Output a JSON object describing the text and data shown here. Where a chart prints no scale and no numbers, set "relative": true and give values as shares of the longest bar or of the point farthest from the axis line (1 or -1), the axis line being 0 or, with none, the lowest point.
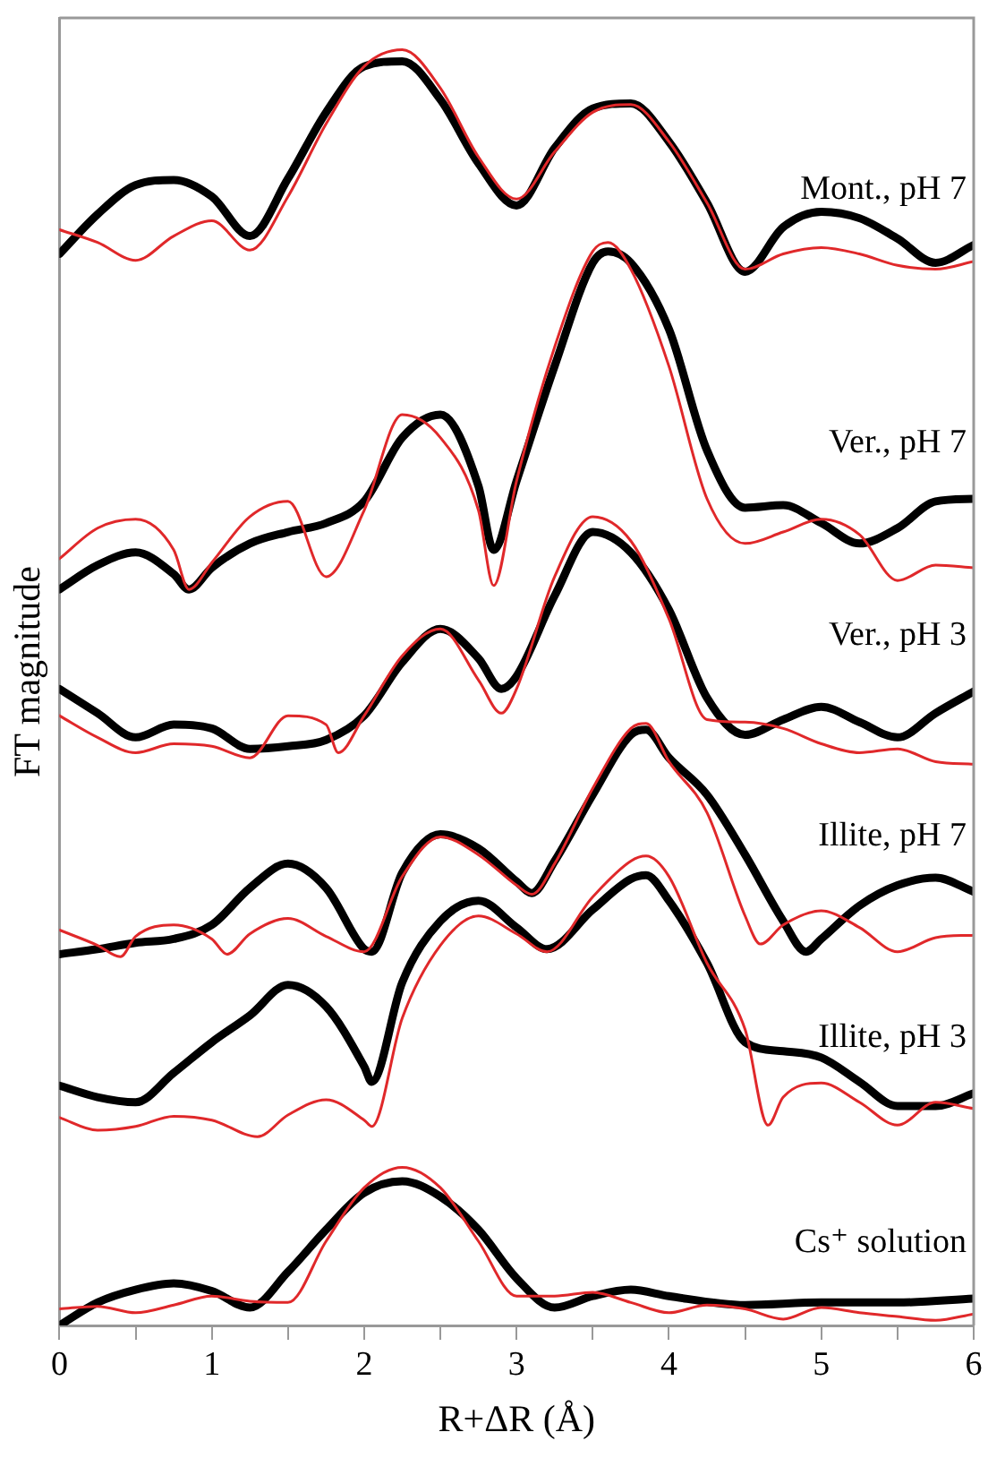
{
  "chart_data": {
    "type": "line",
    "relative": true,
    "xlabel": "R+ΔR (Å)",
    "ylabel": "FT magnitude",
    "xlim": [
      0,
      6
    ],
    "xticks": [
      0,
      {
        "value": 0.5,
        "label": null
      },
      1,
      {
        "value": 1.5,
        "label": null
      },
      2,
      {
        "value": 2.5,
        "label": null
      },
      3,
      {
        "value": 3.5,
        "label": null
      },
      4,
      {
        "value": 4.5,
        "label": null
      },
      5,
      {
        "value": 5.5,
        "label": null
      },
      6
    ],
    "legend": false,
    "grid": false,
    "marker": "none",
    "line_style": "solid",
    "series": [
      {
        "name": "Mont., pH 7",
        "color": "#000000",
        "x": [
          0,
          0.25,
          0.5,
          0.75,
          1,
          1.25,
          1.5,
          1.75,
          2,
          2.25,
          2.5,
          2.75,
          3,
          3.25,
          3.5,
          3.75,
          4,
          4.25,
          4.5,
          4.75,
          5,
          5.25,
          5.5,
          5.75,
          6
        ],
        "values": [
          0.84,
          0.871,
          0.894,
          0.898,
          0.885,
          0.854,
          0.899,
          0.951,
          0.987,
          0.991,
          0.961,
          0.911,
          0.878,
          0.923,
          0.954,
          0.958,
          0.928,
          0.88,
          0.826,
          0.861,
          0.873,
          0.868,
          0.852,
          0.833,
          0.847
        ]
      },
      {
        "color": "#e0282a",
        "x": [
          0,
          0.25,
          0.5,
          0.75,
          1,
          1.25,
          1.5,
          1.75,
          2,
          2.25,
          2.5,
          2.75,
          3,
          3.25,
          3.5,
          3.75,
          4,
          4.25,
          4.5,
          4.75,
          5,
          5.25,
          5.5,
          5.75,
          6
        ],
        "values": [
          0.859,
          0.849,
          0.835,
          0.854,
          0.866,
          0.843,
          0.885,
          0.942,
          0.987,
          1,
          0.97,
          0.916,
          0.883,
          0.92,
          0.951,
          0.957,
          0.928,
          0.88,
          0.828,
          0.84,
          0.845,
          0.84,
          0.831,
          0.828,
          0.834
        ]
      },
      {
        "name": "Ver., pH 7",
        "color": "#000000",
        "x": [
          0,
          0.25,
          0.5,
          0.75,
          0.85,
          1,
          1.25,
          1.5,
          1.75,
          2,
          2.25,
          2.5,
          2.75,
          2.85,
          3,
          3.25,
          3.5,
          3.6,
          3.75,
          4,
          4.25,
          4.5,
          4.75,
          5,
          5.25,
          5.5,
          5.75,
          6
        ],
        "values": [
          0.577,
          0.596,
          0.606,
          0.589,
          0.577,
          0.594,
          0.613,
          0.622,
          0.629,
          0.646,
          0.696,
          0.714,
          0.658,
          0.608,
          0.662,
          0.752,
          0.833,
          0.842,
          0.833,
          0.781,
          0.686,
          0.641,
          0.643,
          0.629,
          0.613,
          0.625,
          0.646,
          0.648
        ]
      },
      {
        "color": "#e0282a",
        "x": [
          0,
          0.25,
          0.5,
          0.75,
          0.85,
          1,
          1.25,
          1.5,
          1.75,
          2,
          2.25,
          2.5,
          2.75,
          2.85,
          3,
          3.25,
          3.5,
          3.6,
          3.75,
          4,
          4.25,
          4.5,
          4.75,
          5,
          5.25,
          5.5,
          5.75,
          6
        ],
        "values": [
          0.601,
          0.625,
          0.632,
          0.608,
          0.577,
          0.598,
          0.634,
          0.646,
          0.587,
          0.639,
          0.714,
          0.696,
          0.639,
          0.58,
          0.662,
          0.767,
          0.842,
          0.849,
          0.828,
          0.752,
          0.648,
          0.613,
          0.622,
          0.632,
          0.62,
          0.584,
          0.596,
          0.594
        ]
      },
      {
        "name": "Ver., pH 3",
        "color": "#000000",
        "x": [
          0,
          0.25,
          0.5,
          0.75,
          1,
          1.25,
          1.5,
          1.75,
          2,
          2.25,
          2.5,
          2.75,
          2.9,
          3,
          3.25,
          3.5,
          3.75,
          4,
          4.25,
          4.5,
          4.75,
          5,
          5.25,
          5.5,
          5.75,
          6
        ],
        "values": [
          0.499,
          0.48,
          0.461,
          0.471,
          0.468,
          0.452,
          0.454,
          0.459,
          0.478,
          0.52,
          0.546,
          0.523,
          0.499,
          0.509,
          0.572,
          0.622,
          0.606,
          0.561,
          0.492,
          0.463,
          0.475,
          0.485,
          0.473,
          0.461,
          0.48,
          0.497
        ]
      },
      {
        "color": "#e0282a",
        "x": [
          0,
          0.25,
          0.5,
          0.75,
          1,
          1.25,
          1.5,
          1.75,
          1.83,
          2,
          2.25,
          2.5,
          2.75,
          2.9,
          3,
          3.25,
          3.5,
          3.75,
          4,
          4.25,
          4.5,
          4.75,
          5,
          5.25,
          5.5,
          5.75,
          6
        ],
        "values": [
          0.478,
          0.461,
          0.449,
          0.456,
          0.454,
          0.445,
          0.478,
          0.471,
          0.449,
          0.478,
          0.525,
          0.546,
          0.506,
          0.48,
          0.499,
          0.587,
          0.634,
          0.615,
          0.554,
          0.475,
          0.473,
          0.468,
          0.456,
          0.449,
          0.452,
          0.442,
          0.44
        ]
      },
      {
        "name": "Illite, pH 7",
        "color": "#000000",
        "x": [
          0,
          0.25,
          0.5,
          0.75,
          1,
          1.25,
          1.5,
          1.75,
          2,
          2.05,
          2.25,
          2.5,
          2.75,
          3,
          3.1,
          3.25,
          3.5,
          3.75,
          3.85,
          4,
          4.25,
          4.5,
          4.75,
          4.9,
          5,
          5.25,
          5.5,
          5.75,
          6
        ],
        "values": [
          0.291,
          0.295,
          0.3,
          0.303,
          0.314,
          0.343,
          0.362,
          0.343,
          0.295,
          0.293,
          0.355,
          0.385,
          0.374,
          0.348,
          0.339,
          0.364,
          0.416,
          0.463,
          0.467,
          0.445,
          0.416,
          0.369,
          0.317,
          0.293,
          0.303,
          0.329,
          0.345,
          0.351,
          0.34
        ]
      },
      {
        "color": "#e0282a",
        "x": [
          0,
          0.25,
          0.4,
          0.5,
          0.75,
          1,
          1.1,
          1.25,
          1.5,
          1.75,
          2,
          2.25,
          2.5,
          2.75,
          3,
          3.1,
          3.25,
          3.5,
          3.75,
          3.85,
          4,
          4.25,
          4.5,
          4.6,
          4.75,
          5,
          5.25,
          5.5,
          5.75,
          6
        ],
        "values": [
          0.31,
          0.298,
          0.289,
          0.305,
          0.314,
          0.303,
          0.291,
          0.307,
          0.319,
          0.305,
          0.293,
          0.352,
          0.383,
          0.369,
          0.345,
          0.338,
          0.362,
          0.421,
          0.468,
          0.472,
          0.442,
          0.402,
          0.321,
          0.299,
          0.314,
          0.325,
          0.312,
          0.293,
          0.304,
          0.306
        ]
      },
      {
        "name": "Illite, pH 3",
        "color": "#000000",
        "x": [
          0,
          0.25,
          0.5,
          0.75,
          1,
          1.25,
          1.5,
          1.75,
          2,
          2.05,
          2.25,
          2.5,
          2.75,
          3,
          3.2,
          3.5,
          3.75,
          3.85,
          4,
          4.25,
          4.5,
          4.75,
          5,
          5.25,
          5.5,
          5.75,
          6
        ],
        "values": [
          0.188,
          0.179,
          0.175,
          0.198,
          0.222,
          0.243,
          0.267,
          0.25,
          0.203,
          0.191,
          0.269,
          0.317,
          0.333,
          0.312,
          0.295,
          0.326,
          0.35,
          0.353,
          0.333,
          0.284,
          0.222,
          0.215,
          0.21,
          0.191,
          0.172,
          0.172,
          0.182
        ]
      },
      {
        "color": "#e0282a",
        "x": [
          0,
          0.25,
          0.5,
          0.75,
          1,
          1.3,
          1.5,
          1.75,
          2,
          2.05,
          2.25,
          2.5,
          2.75,
          3,
          3.2,
          3.5,
          3.75,
          3.85,
          4,
          4.25,
          4.5,
          4.65,
          4.75,
          5,
          5.25,
          5.5,
          5.75,
          6
        ],
        "values": [
          0.163,
          0.153,
          0.156,
          0.164,
          0.161,
          0.148,
          0.165,
          0.177,
          0.161,
          0.156,
          0.241,
          0.298,
          0.321,
          0.307,
          0.293,
          0.336,
          0.364,
          0.368,
          0.352,
          0.284,
          0.232,
          0.157,
          0.179,
          0.19,
          0.175,
          0.157,
          0.175,
          0.17
        ]
      },
      {
        "name": "Cs⁺ solution",
        "color": "#000000",
        "x": [
          0,
          0.25,
          0.5,
          0.75,
          1,
          1.25,
          1.5,
          1.75,
          2,
          2.25,
          2.5,
          2.75,
          3,
          3.25,
          3.5,
          3.75,
          4,
          4.5,
          5,
          5.5,
          6
        ],
        "values": [
          0,
          0.018,
          0.028,
          0.033,
          0.027,
          0.014,
          0.042,
          0.075,
          0.104,
          0.113,
          0.101,
          0.075,
          0.037,
          0.014,
          0.023,
          0.028,
          0.023,
          0.016,
          0.018,
          0.018,
          0.021
        ]
      },
      {
        "color": "#e0282a",
        "x": [
          0,
          0.25,
          0.5,
          0.75,
          1,
          1.25,
          1.5,
          1.75,
          2,
          2.25,
          2.5,
          2.75,
          3,
          3.25,
          3.5,
          3.75,
          4,
          4.25,
          4.5,
          4.75,
          5,
          5.25,
          5.5,
          5.75,
          6
        ],
        "values": [
          0.013,
          0.015,
          0.01,
          0.016,
          0.023,
          0.019,
          0.018,
          0.066,
          0.108,
          0.124,
          0.108,
          0.066,
          0.023,
          0.023,
          0.026,
          0.018,
          0.01,
          0.016,
          0.013,
          0.005,
          0.014,
          0.01,
          0.007,
          0.004,
          0.009
        ]
      }
    ]
  }
}
